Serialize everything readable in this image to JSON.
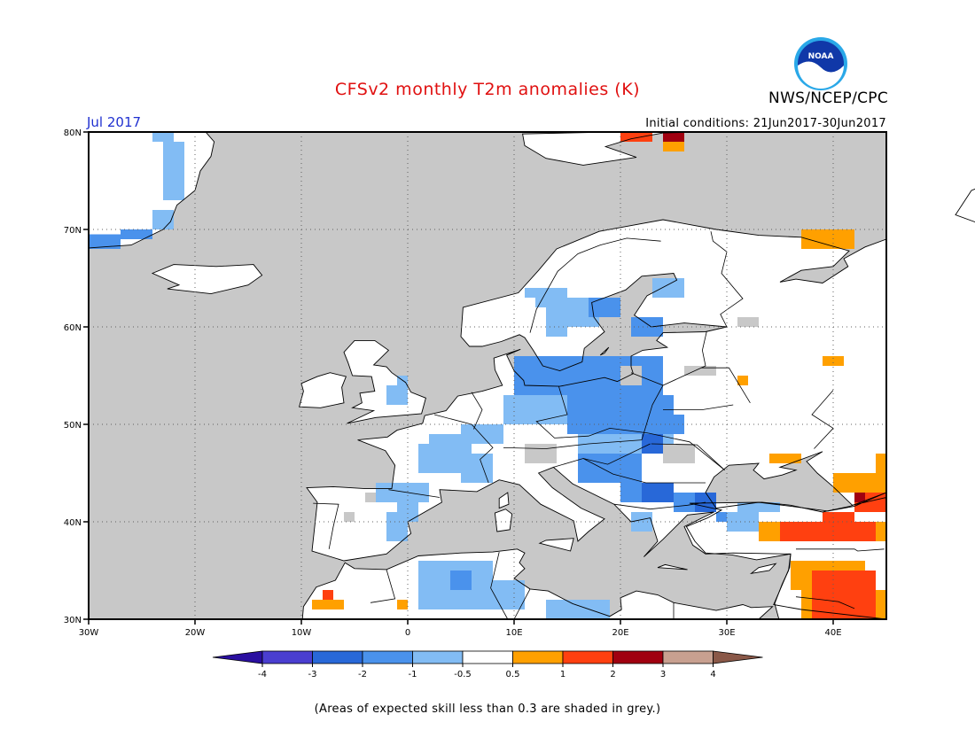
{
  "title": "CFSv2 monthly T2m anomalies (K)",
  "agency": "NWS/NCEP/CPC",
  "logo_text": "NOAA",
  "month": "Jul 2017",
  "initial_conditions": "Initial conditions: 21Jun2017-30Jun2017",
  "footnote": "(Areas of expected skill less than 0.3 are shaded in grey.)",
  "map": {
    "lat_ticks": [
      "80N",
      "70N",
      "60N",
      "50N",
      "40N",
      "30N"
    ],
    "lon_ticks": [
      "30W",
      "20W",
      "10W",
      "0",
      "10E",
      "20E",
      "30E",
      "40E"
    ],
    "lon_range": [
      -30,
      45
    ],
    "lat_range": [
      30,
      80
    ],
    "grid": "dotted",
    "ocean_color": "#c8c8c8",
    "land_color": "#ffffff"
  },
  "colorbar": {
    "tick_labels": [
      "-4",
      "-3",
      "-2",
      "-1",
      "-0.5",
      "0.5",
      "1",
      "2",
      "3",
      "4"
    ],
    "colors": [
      "#2a0fa0",
      "#4a3ed0",
      "#2868d8",
      "#4a92ec",
      "#82bcf4",
      "#ffffff",
      "#ffa000",
      "#ff4010",
      "#a00010",
      "#c8a090",
      "#8a5848"
    ]
  }
}
